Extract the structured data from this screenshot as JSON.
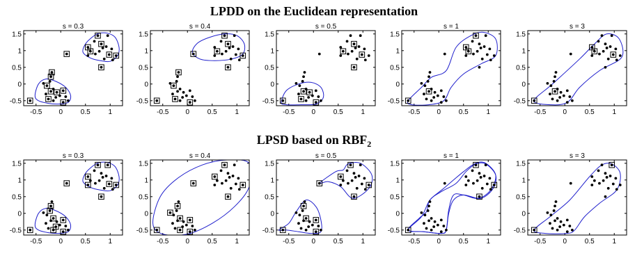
{
  "rows": [
    {
      "title_main": "LPDD on the Euclidean representation",
      "title_sub": ""
    },
    {
      "title_main": "LPSD based on RBF",
      "title_sub": "2"
    }
  ],
  "chart_data": {
    "type": "scatter",
    "xlim": [
      -0.75,
      1.25
    ],
    "ylim": [
      -0.65,
      1.6
    ],
    "xticks": [
      -0.5,
      0,
      0.5,
      1
    ],
    "yticks": [
      -0.5,
      0,
      0.5,
      1,
      1.5
    ],
    "xtick_labels": [
      "-0.5",
      "0",
      "0.5",
      "1"
    ],
    "ytick_labels": [
      "-0.5",
      "0",
      "0.5",
      "1",
      "1.5"
    ],
    "grid": false,
    "points": [
      [
        0.75,
        1.45
      ],
      [
        0.95,
        1.45
      ],
      [
        0.55,
        1.1
      ],
      [
        0.68,
        1.28
      ],
      [
        0.82,
        1.2
      ],
      [
        0.85,
        1.08
      ],
      [
        0.92,
        1.12
      ],
      [
        1.03,
        1.05
      ],
      [
        0.78,
        0.98
      ],
      [
        0.6,
        0.98
      ],
      [
        0.7,
        0.9
      ],
      [
        0.98,
        0.88
      ],
      [
        1.12,
        0.85
      ],
      [
        0.55,
        0.85
      ],
      [
        0.88,
        0.75
      ],
      [
        1.05,
        0.72
      ],
      [
        0.82,
        0.5
      ],
      [
        -0.62,
        -0.5
      ],
      [
        -0.18,
        0.35
      ],
      [
        -0.2,
        0.22
      ],
      [
        -0.22,
        0.08
      ],
      [
        -0.35,
        0.02
      ],
      [
        -0.28,
        -0.05
      ],
      [
        -0.15,
        -0.15
      ],
      [
        -0.2,
        -0.22
      ],
      [
        -0.3,
        -0.3
      ],
      [
        -0.08,
        -0.25
      ],
      [
        0.05,
        -0.2
      ],
      [
        -0.25,
        -0.45
      ],
      [
        -0.15,
        -0.5
      ],
      [
        -0.1,
        -0.4
      ],
      [
        -0.02,
        -0.35
      ],
      [
        0.1,
        -0.38
      ],
      [
        0.15,
        -0.5
      ],
      [
        0.05,
        -0.55
      ],
      [
        0.12,
        0.9
      ]
    ],
    "panels": [
      {
        "row": 0,
        "title": "s = 0.3",
        "support": [
          0,
          2,
          4,
          9,
          11,
          12,
          16,
          17,
          18,
          19,
          22,
          24,
          26,
          27,
          28,
          34,
          35
        ]
      },
      {
        "row": 0,
        "title": "s = 0.4",
        "support": [
          0,
          4,
          9,
          12,
          16,
          17,
          18,
          22,
          28,
          34,
          35
        ]
      },
      {
        "row": 0,
        "title": "s = 0.5",
        "support": [
          4,
          9,
          11,
          16,
          17,
          24,
          26,
          28,
          34
        ]
      },
      {
        "row": 0,
        "title": "s = 1",
        "support": [
          0,
          2,
          9,
          17,
          24
        ]
      },
      {
        "row": 0,
        "title": "s = 3",
        "support": [
          2,
          9,
          11,
          17,
          24
        ]
      },
      {
        "row": 1,
        "title": "s = 0.3",
        "support": [
          0,
          1,
          2,
          11,
          12,
          13,
          16,
          17,
          19,
          20,
          23,
          27,
          29,
          30,
          34,
          35
        ]
      },
      {
        "row": 1,
        "title": "s = 0.4",
        "support": [
          0,
          2,
          12,
          16,
          17,
          19,
          21,
          23,
          27,
          29,
          34,
          35
        ]
      },
      {
        "row": 1,
        "title": "s = 0.5",
        "support": [
          0,
          2,
          12,
          16,
          17,
          19,
          23,
          27,
          34,
          35
        ]
      },
      {
        "row": 1,
        "title": "s = 1",
        "support": [
          0,
          12,
          16,
          17
        ]
      },
      {
        "row": 1,
        "title": "s = 3",
        "support": [
          1,
          17
        ]
      }
    ],
    "boundaries": [
      [
        [
          0.45,
          0.95
        ],
        [
          0.5,
          1.2
        ],
        [
          0.65,
          1.42
        ],
        [
          0.78,
          1.52
        ],
        [
          0.95,
          1.52
        ],
        [
          1.1,
          1.4
        ],
        [
          1.18,
          1.1
        ],
        [
          1.15,
          0.85
        ],
        [
          1.0,
          0.68
        ],
        [
          0.8,
          0.7
        ],
        [
          0.6,
          0.78
        ]
      ],
      [
        [
          -0.52,
          -0.35
        ],
        [
          -0.45,
          0.0
        ],
        [
          -0.3,
          0.15
        ],
        [
          -0.1,
          0.08
        ],
        [
          0.1,
          -0.1
        ],
        [
          0.2,
          -0.35
        ],
        [
          0.15,
          -0.55
        ],
        [
          -0.05,
          -0.6
        ],
        [
          -0.25,
          -0.58
        ],
        [
          -0.45,
          -0.5
        ]
      ],
      [
        [
          0.1,
          0.95
        ],
        [
          0.2,
          1.22
        ],
        [
          0.45,
          1.4
        ],
        [
          0.75,
          1.5
        ],
        [
          1.0,
          1.45
        ],
        [
          1.15,
          1.2
        ],
        [
          1.12,
          0.9
        ],
        [
          0.9,
          0.75
        ],
        [
          0.55,
          0.7
        ],
        [
          0.25,
          0.75
        ]
      ],
      [
        [
          -0.65,
          -0.55
        ],
        [
          -0.55,
          -0.2
        ],
        [
          -0.3,
          0.0
        ],
        [
          -0.05,
          0.05
        ],
        [
          0.15,
          -0.1
        ],
        [
          0.2,
          -0.4
        ],
        [
          0.05,
          -0.6
        ],
        [
          -0.25,
          -0.62
        ],
        [
          -0.55,
          -0.62
        ]
      ],
      [
        [
          -0.62,
          -0.5
        ],
        [
          -0.35,
          -0.1
        ],
        [
          -0.15,
          0.2
        ],
        [
          0.15,
          0.4
        ],
        [
          0.35,
          1.1
        ],
        [
          0.65,
          1.45
        ],
        [
          0.9,
          1.55
        ],
        [
          1.15,
          1.35
        ],
        [
          1.15,
          0.85
        ],
        [
          0.85,
          0.6
        ],
        [
          0.5,
          0.3
        ],
        [
          0.25,
          -0.1
        ],
        [
          0.1,
          -0.5
        ],
        [
          -0.2,
          -0.62
        ],
        [
          -0.55,
          -0.62
        ]
      ],
      [
        [
          -0.62,
          -0.5
        ],
        [
          -0.25,
          0.0
        ],
        [
          0.3,
          0.75
        ],
        [
          0.6,
          1.2
        ],
        [
          0.85,
          1.5
        ],
        [
          1.1,
          1.35
        ],
        [
          1.15,
          0.8
        ],
        [
          0.7,
          0.4
        ],
        [
          0.3,
          -0.1
        ],
        [
          0.05,
          -0.55
        ],
        [
          -0.3,
          -0.62
        ]
      ],
      [
        [
          -0.7,
          -0.3
        ],
        [
          -0.55,
          0.5
        ],
        [
          -0.2,
          1.05
        ],
        [
          0.3,
          1.45
        ],
        [
          0.8,
          1.6
        ],
        [
          1.25,
          1.5
        ],
        [
          1.25,
          0.8
        ],
        [
          0.95,
          0.2
        ],
        [
          0.5,
          -0.3
        ],
        [
          0.0,
          -0.62
        ],
        [
          -0.5,
          -0.62
        ]
      ],
      [
        [
          0.12,
          0.9
        ],
        [
          0.45,
          1.25
        ],
        [
          0.6,
          1.3
        ],
        [
          0.7,
          1.48
        ],
        [
          0.95,
          1.5
        ],
        [
          1.18,
          1.15
        ],
        [
          1.12,
          0.75
        ],
        [
          0.8,
          0.45
        ],
        [
          0.55,
          0.8
        ],
        [
          0.3,
          0.95
        ]
      ],
      [
        [
          -0.7,
          -0.5
        ],
        [
          -0.5,
          -0.3
        ],
        [
          -0.35,
          0.05
        ],
        [
          -0.15,
          0.4
        ],
        [
          0.05,
          0.2
        ],
        [
          0.15,
          -0.2
        ],
        [
          0.15,
          -0.55
        ],
        [
          -0.05,
          -0.6
        ],
        [
          -0.3,
          -0.55
        ],
        [
          -0.55,
          -0.5
        ]
      ],
      [
        [
          -0.62,
          -0.5
        ],
        [
          -0.4,
          -0.15
        ],
        [
          -0.25,
          0.05
        ],
        [
          -0.18,
          0.4
        ],
        [
          0.1,
          0.75
        ],
        [
          0.5,
          1.25
        ],
        [
          0.75,
          1.5
        ],
        [
          0.95,
          1.5
        ],
        [
          1.15,
          1.15
        ],
        [
          1.05,
          0.7
        ],
        [
          0.8,
          0.45
        ],
        [
          0.5,
          0.55
        ],
        [
          0.3,
          0.55
        ],
        [
          0.2,
          0.1
        ],
        [
          0.15,
          -0.5
        ],
        [
          0.05,
          -0.6
        ],
        [
          -0.3,
          -0.55
        ]
      ],
      [
        [
          -0.62,
          -0.5
        ],
        [
          -0.35,
          -0.1
        ],
        [
          -0.18,
          0.4
        ],
        [
          0.05,
          0.65
        ],
        [
          0.35,
          0.9
        ],
        [
          0.55,
          1.25
        ],
        [
          0.75,
          1.48
        ],
        [
          0.95,
          1.48
        ],
        [
          1.15,
          1.15
        ],
        [
          1.1,
          0.75
        ],
        [
          0.85,
          0.45
        ],
        [
          0.5,
          0.55
        ],
        [
          0.3,
          0.4
        ],
        [
          0.2,
          0.0
        ],
        [
          0.15,
          -0.5
        ],
        [
          0.05,
          -0.6
        ],
        [
          -0.3,
          -0.55
        ]
      ],
      [
        [
          -0.62,
          -0.5
        ],
        [
          -0.3,
          -0.1
        ],
        [
          0.1,
          0.4
        ],
        [
          0.5,
          1.1
        ],
        [
          0.75,
          1.45
        ],
        [
          0.95,
          1.48
        ],
        [
          1.12,
          1.2
        ],
        [
          1.05,
          0.7
        ],
        [
          0.7,
          0.3
        ],
        [
          0.4,
          -0.1
        ],
        [
          0.2,
          -0.5
        ],
        [
          0.05,
          -0.6
        ],
        [
          -0.4,
          -0.6
        ]
      ],
      [
        [
          -0.62,
          -0.5
        ],
        [
          -0.3,
          -0.1
        ],
        [
          0.1,
          0.6
        ],
        [
          0.5,
          1.2
        ],
        [
          0.75,
          1.45
        ],
        [
          1.05,
          1.42
        ],
        [
          1.15,
          1.0
        ],
        [
          0.85,
          0.5
        ],
        [
          0.45,
          0.0
        ],
        [
          0.15,
          -0.45
        ],
        [
          -0.2,
          -0.62
        ],
        [
          -0.55,
          -0.62
        ]
      ],
      [
        [
          -0.62,
          -0.5
        ],
        [
          -0.45,
          0.0
        ],
        [
          -0.1,
          0.7
        ],
        [
          0.5,
          1.4
        ],
        [
          0.95,
          1.62
        ],
        [
          1.3,
          1.5
        ],
        [
          1.3,
          0.5
        ],
        [
          0.9,
          -0.1
        ],
        [
          0.4,
          -0.55
        ],
        [
          -0.2,
          -0.7
        ],
        [
          -0.55,
          -0.62
        ]
      ]
    ],
    "panel_boundaries": [
      [
        0,
        1
      ],
      [
        2
      ],
      [
        3
      ],
      [
        4
      ],
      [
        5
      ],
      [
        0,
        1
      ],
      [
        6
      ],
      [
        7,
        8
      ],
      [
        9,
        10
      ],
      [
        11
      ]
    ]
  }
}
